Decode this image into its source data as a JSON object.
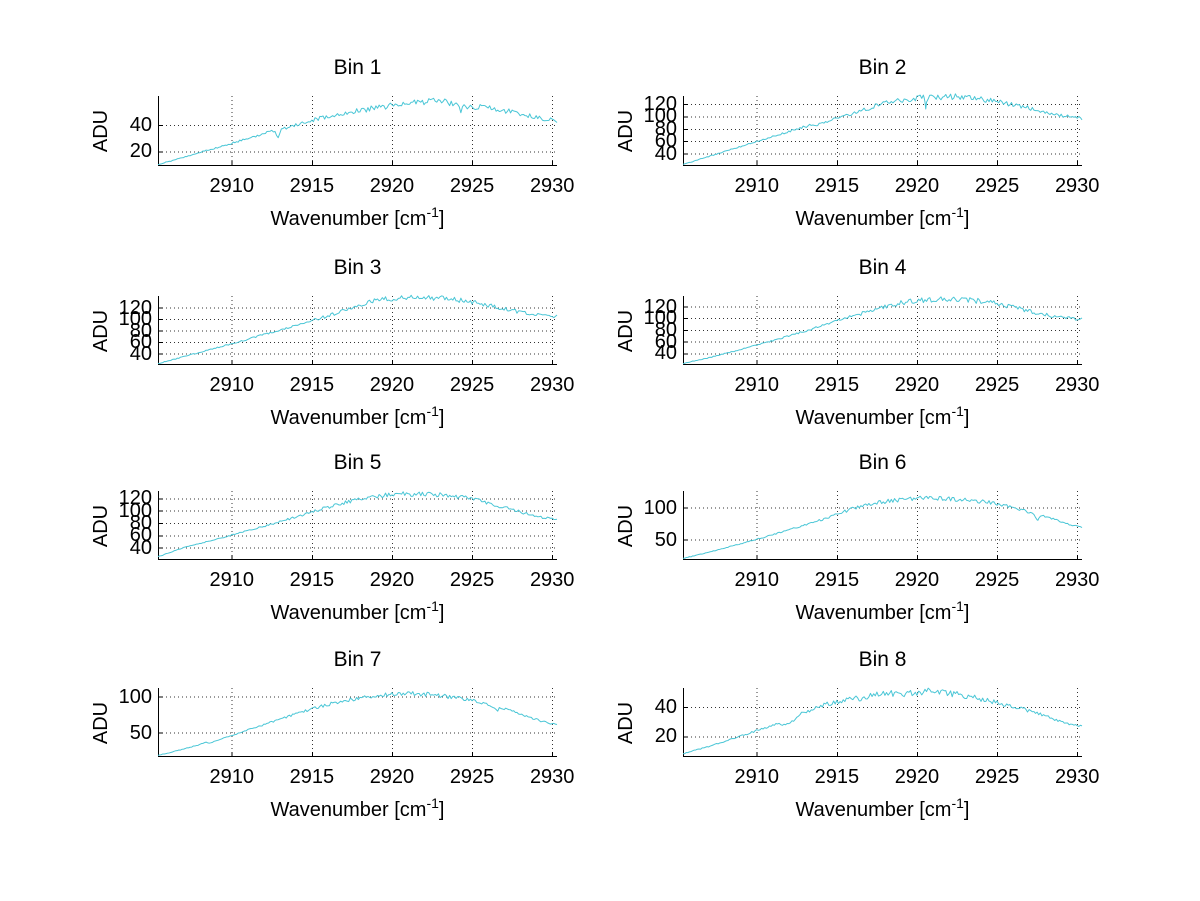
{
  "figure": {
    "background": "#ffffff",
    "line_color": "#4AC6D6",
    "grid_color": "#000000",
    "axis_color": "#000000"
  },
  "chart_data": {
    "type": "line",
    "layout": {
      "rows": 4,
      "cols": 2,
      "grid": "dotted",
      "legend": "none"
    },
    "ylabel": "ADU",
    "xlabel": {
      "pre": "Wavenumber [cm",
      "sup": "-1",
      "post": "]"
    },
    "xlim": [
      2905.4,
      2930.3
    ],
    "x_ticks": [
      2910,
      2915,
      2920,
      2925,
      2930
    ],
    "bins": [
      {
        "title": "Bin 1",
        "ylim": [
          9,
          62
        ],
        "yticks": [
          20,
          40
        ],
        "noise": 1.3,
        "seed": 1,
        "points": [
          [
            2905.4,
            10
          ],
          [
            2906.5,
            13.5
          ],
          [
            2908,
            19
          ],
          [
            2909.5,
            24
          ],
          [
            2911,
            29.5
          ],
          [
            2912.7,
            35.5
          ],
          [
            2912.9,
            29.5
          ],
          [
            2913.1,
            36.5
          ],
          [
            2914,
            39.5
          ],
          [
            2915,
            43
          ],
          [
            2916,
            45.5
          ],
          [
            2917,
            47.5
          ],
          [
            2918,
            50
          ],
          [
            2919,
            52
          ],
          [
            2920,
            53.5
          ],
          [
            2921,
            55
          ],
          [
            2922,
            56
          ],
          [
            2922.7,
            57
          ],
          [
            2923.3,
            56
          ],
          [
            2924.1,
            54
          ],
          [
            2924.3,
            50
          ],
          [
            2924.5,
            53
          ],
          [
            2925.5,
            52.5
          ],
          [
            2926.5,
            51
          ],
          [
            2927.5,
            49
          ],
          [
            2928.5,
            46.5
          ],
          [
            2929.5,
            44
          ],
          [
            2930.3,
            42.5
          ]
        ]
      },
      {
        "title": "Bin 2",
        "ylim": [
          20,
          133
        ],
        "yticks": [
          40,
          60,
          80,
          100,
          120
        ],
        "noise": 2.4,
        "seed": 2,
        "points": [
          [
            2905.4,
            22
          ],
          [
            2906.5,
            31
          ],
          [
            2908,
            43
          ],
          [
            2909.5,
            55
          ],
          [
            2911,
            67
          ],
          [
            2912.5,
            79
          ],
          [
            2913.4,
            85
          ],
          [
            2913.6,
            83.5
          ],
          [
            2914.5,
            92
          ],
          [
            2915.5,
            100
          ],
          [
            2916.5,
            108
          ],
          [
            2917.3,
            114
          ],
          [
            2917.8,
            118
          ],
          [
            2918.5,
            122
          ],
          [
            2919.5,
            126
          ],
          [
            2920.3,
            128
          ],
          [
            2920.45,
            128.5
          ],
          [
            2920.55,
            113
          ],
          [
            2920.7,
            127.5
          ],
          [
            2921.5,
            129
          ],
          [
            2922.3,
            129.5
          ],
          [
            2923,
            128.5
          ],
          [
            2924,
            126
          ],
          [
            2925,
            122
          ],
          [
            2926,
            117
          ],
          [
            2927,
            111.5
          ],
          [
            2928,
            106
          ],
          [
            2929,
            100.5
          ],
          [
            2930.3,
            95
          ]
        ]
      },
      {
        "title": "Bin 3",
        "ylim": [
          20,
          140
        ],
        "yticks": [
          40,
          60,
          80,
          100,
          120
        ],
        "noise": 2.4,
        "seed": 3,
        "points": [
          [
            2905.4,
            22
          ],
          [
            2907,
            34
          ],
          [
            2909,
            49
          ],
          [
            2911,
            64
          ],
          [
            2913,
            80
          ],
          [
            2914,
            88
          ],
          [
            2915,
            96
          ],
          [
            2916,
            104
          ],
          [
            2916.8,
            111
          ],
          [
            2917.6,
            119
          ],
          [
            2918.3,
            126
          ],
          [
            2919,
            130
          ],
          [
            2920,
            133
          ],
          [
            2921,
            135
          ],
          [
            2922,
            134.5
          ],
          [
            2923,
            133.5
          ],
          [
            2924,
            131
          ],
          [
            2925,
            127
          ],
          [
            2926,
            121.5
          ],
          [
            2927,
            116
          ],
          [
            2928,
            110.5
          ],
          [
            2929,
            106.5
          ],
          [
            2930.3,
            103
          ]
        ]
      },
      {
        "title": "Bin 4",
        "ylim": [
          20,
          138
        ],
        "yticks": [
          40,
          60,
          80,
          100,
          120
        ],
        "noise": 2.4,
        "seed": 4,
        "points": [
          [
            2905.4,
            22
          ],
          [
            2907,
            32
          ],
          [
            2909,
            46
          ],
          [
            2911,
            61
          ],
          [
            2913,
            77
          ],
          [
            2915,
            94
          ],
          [
            2916,
            102
          ],
          [
            2917,
            110
          ],
          [
            2917.8,
            116
          ],
          [
            2918.6,
            122
          ],
          [
            2919.5,
            126
          ],
          [
            2920.5,
            129
          ],
          [
            2921.3,
            131
          ],
          [
            2922,
            130
          ],
          [
            2923,
            129
          ],
          [
            2924,
            127
          ],
          [
            2925,
            123.5
          ],
          [
            2926,
            117
          ],
          [
            2927,
            110.5
          ],
          [
            2928,
            104.5
          ],
          [
            2929,
            100
          ],
          [
            2930.3,
            97
          ]
        ]
      },
      {
        "title": "Bin 5",
        "ylim": [
          20,
          132
        ],
        "yticks": [
          40,
          60,
          80,
          100,
          120
        ],
        "noise": 2.0,
        "seed": 5,
        "points": [
          [
            2905.4,
            25
          ],
          [
            2907,
            40
          ],
          [
            2909,
            53
          ],
          [
            2911,
            67
          ],
          [
            2912,
            74
          ],
          [
            2913,
            81
          ],
          [
            2914,
            89
          ],
          [
            2915,
            97
          ],
          [
            2916,
            104
          ],
          [
            2917,
            111
          ],
          [
            2917.8,
            116
          ],
          [
            2918.6,
            120
          ],
          [
            2919.5,
            123
          ],
          [
            2920.5,
            125
          ],
          [
            2921.2,
            124
          ],
          [
            2922,
            125
          ],
          [
            2923,
            124
          ],
          [
            2924,
            121
          ],
          [
            2925,
            117
          ],
          [
            2926,
            111
          ],
          [
            2927,
            104
          ],
          [
            2928,
            97
          ],
          [
            2929,
            90
          ],
          [
            2930.3,
            84
          ]
        ]
      },
      {
        "title": "Bin 6",
        "ylim": [
          18,
          126
        ],
        "yticks": [
          50,
          100
        ],
        "noise": 1.8,
        "seed": 6,
        "points": [
          [
            2905.4,
            20
          ],
          [
            2907,
            30
          ],
          [
            2909,
            43
          ],
          [
            2911,
            57
          ],
          [
            2913,
            72
          ],
          [
            2914,
            80
          ],
          [
            2914.8,
            86
          ],
          [
            2915.3,
            91
          ],
          [
            2916,
            97
          ],
          [
            2916.8,
            102
          ],
          [
            2917.5,
            106
          ],
          [
            2918.3,
            109
          ],
          [
            2919.2,
            111
          ],
          [
            2920,
            112.5
          ],
          [
            2920.8,
            114
          ],
          [
            2921.6,
            112.5
          ],
          [
            2922.5,
            111
          ],
          [
            2923.5,
            109
          ],
          [
            2924.5,
            106.5
          ],
          [
            2925.3,
            103
          ],
          [
            2926,
            99
          ],
          [
            2926.8,
            93
          ],
          [
            2927.3,
            88
          ],
          [
            2927.55,
            80
          ],
          [
            2927.8,
            86
          ],
          [
            2928.5,
            81
          ],
          [
            2929.3,
            75
          ],
          [
            2930.3,
            68
          ]
        ]
      },
      {
        "title": "Bin 7",
        "ylim": [
          16,
          112
        ],
        "yticks": [
          50,
          100
        ],
        "noise": 1.6,
        "seed": 7,
        "points": [
          [
            2905.4,
            18
          ],
          [
            2906.5,
            24
          ],
          [
            2908,
            33
          ],
          [
            2908.4,
            36
          ],
          [
            2908.6,
            34.5
          ],
          [
            2909.5,
            42
          ],
          [
            2911,
            53
          ],
          [
            2912.5,
            64
          ],
          [
            2914,
            75
          ],
          [
            2915,
            82
          ],
          [
            2916,
            88
          ],
          [
            2917,
            93
          ],
          [
            2918,
            97
          ],
          [
            2919,
            100
          ],
          [
            2920,
            102
          ],
          [
            2921,
            103
          ],
          [
            2922,
            102
          ],
          [
            2923,
            100
          ],
          [
            2924,
            97
          ],
          [
            2925,
            93
          ],
          [
            2926,
            87.5
          ],
          [
            2926.4,
            84
          ],
          [
            2926.6,
            80
          ],
          [
            2926.8,
            84
          ],
          [
            2927.5,
            79
          ],
          [
            2928.3,
            73
          ],
          [
            2929.2,
            66
          ],
          [
            2930.3,
            60
          ]
        ]
      },
      {
        "title": "Bin 8",
        "ylim": [
          6,
          53
        ],
        "yticks": [
          20,
          40
        ],
        "noise": 1.2,
        "seed": 8,
        "points": [
          [
            2905.4,
            8
          ],
          [
            2907,
            13
          ],
          [
            2909,
            20
          ],
          [
            2910.5,
            25.5
          ],
          [
            2911.4,
            29
          ],
          [
            2911.6,
            27
          ],
          [
            2912.4,
            31
          ],
          [
            2912.6,
            34
          ],
          [
            2913.5,
            38
          ],
          [
            2914.5,
            41.5
          ],
          [
            2915.5,
            44
          ],
          [
            2916.3,
            46
          ],
          [
            2916.5,
            43.5
          ],
          [
            2917,
            47
          ],
          [
            2918,
            48.5
          ],
          [
            2919,
            48
          ],
          [
            2920,
            49
          ],
          [
            2920.8,
            50
          ],
          [
            2921.5,
            48.5
          ],
          [
            2922.5,
            47.5
          ],
          [
            2923.5,
            45.5
          ],
          [
            2924.5,
            43.5
          ],
          [
            2925.5,
            41
          ],
          [
            2926.5,
            38.5
          ],
          [
            2927.5,
            35
          ],
          [
            2928.5,
            31.5
          ],
          [
            2929.3,
            28.5
          ],
          [
            2930.3,
            26.5
          ]
        ]
      }
    ]
  }
}
